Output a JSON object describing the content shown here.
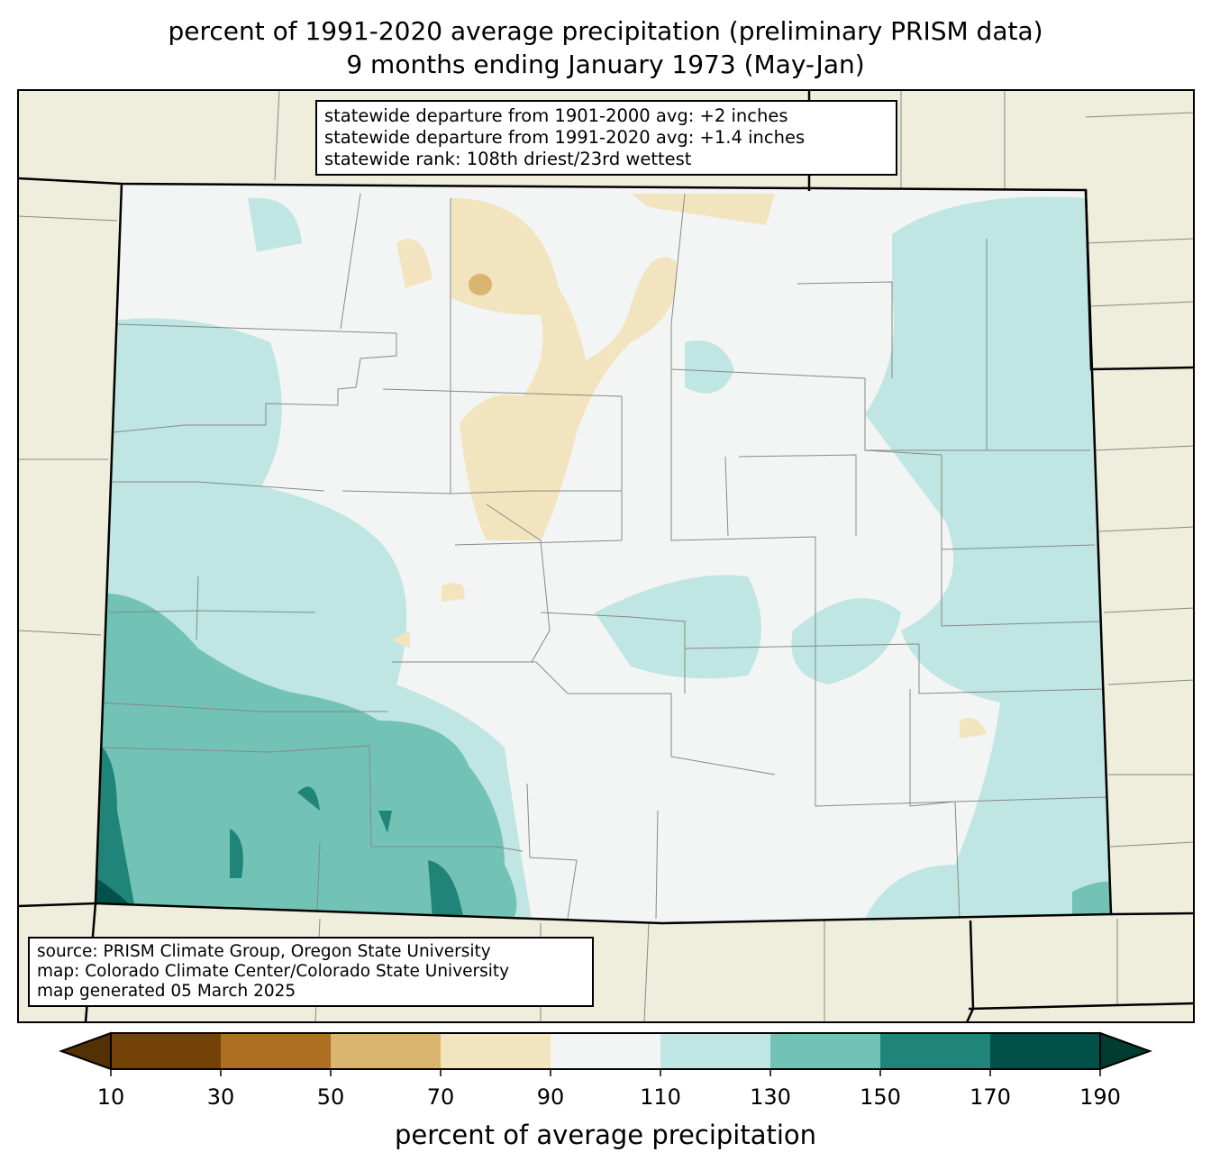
{
  "title": {
    "line1": "percent of 1991-2020 average precipitation (preliminary PRISM data)",
    "line2": "9 months ending January 1973 (May-Jan)"
  },
  "stats_box": {
    "line1": "statewide departure from 1901-2000 avg: +2 inches",
    "line2": "statewide departure from 1991-2020 avg: +1.4 inches",
    "line3": "statewide rank: 108th driest/23rd wettest"
  },
  "source_box": {
    "line1": "source: PRISM Climate Group, Oregon State University",
    "line2": "map: Colorado Climate Center/Colorado State University",
    "line3": "map generated 05 March 2025"
  },
  "colorbar": {
    "label": "percent of average precipitation",
    "ticks": [
      "10",
      "30",
      "50",
      "70",
      "90",
      "110",
      "130",
      "150",
      "170",
      "190"
    ],
    "colors": [
      "#744108",
      "#ad6f22",
      "#dab56f",
      "#f2e4bf",
      "#f3f5f4",
      "#bfe6e2",
      "#72c2b6",
      "#218479",
      "#01514a"
    ],
    "under_color": "#543005",
    "over_color": "#003c30"
  },
  "map_colors": {
    "background": "#efeedc",
    "state_base": "#f3f5f4"
  }
}
